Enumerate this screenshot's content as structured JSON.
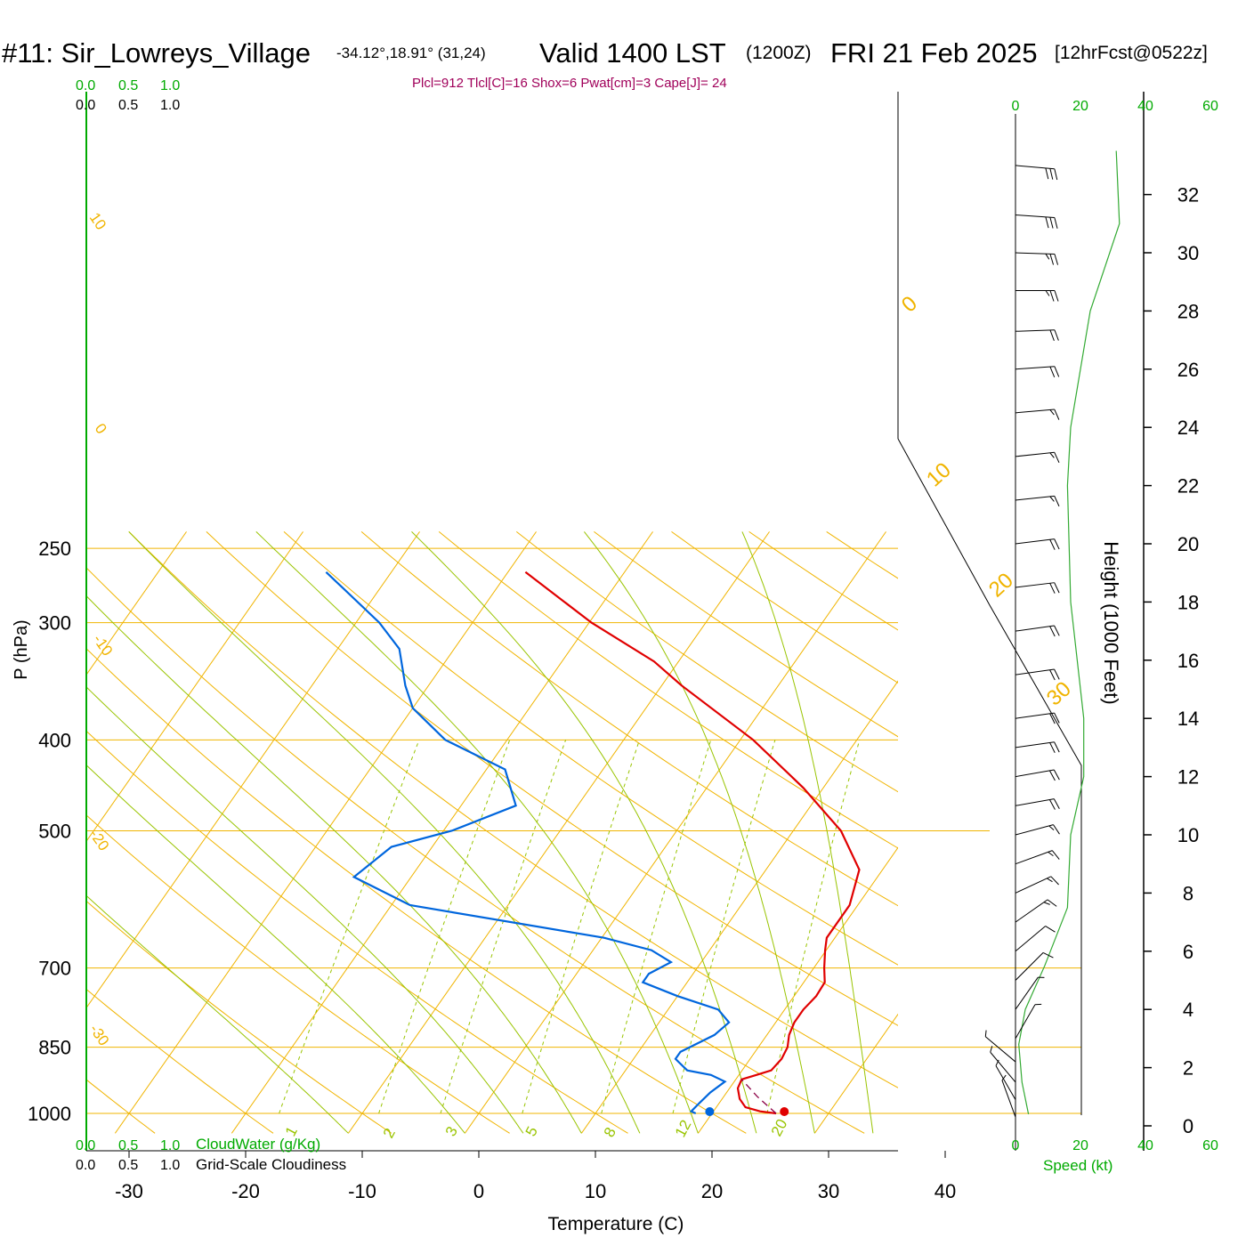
{
  "title": {
    "station": "#11: Sir_Lowreys_Village",
    "coords": "-34.12°,18.91° (31,24)",
    "valid": "Valid 1400 LST",
    "zulu": "(1200Z)",
    "date": "FRI 21 Feb 2025",
    "forecast": "[12hrFcst@0522z]"
  },
  "indices": "Plcl=912 Tlcl[C]=16 Shox=6 Pwat[cm]=3 Cape[J]= 24",
  "colors": {
    "temperature": "#e00000",
    "dewpoint": "#0066dd",
    "parcel": "#8b0045",
    "isobar": "#f0b400",
    "dry_adiabat": "#f0b400",
    "moist_adiabat": "#99c400",
    "mixing_ratio": "#99c400",
    "green_text": "#00aa00",
    "index_text": "#a0005a"
  },
  "chart_data": {
    "type": "line",
    "subtype": "skew-t",
    "xlabel": "Temperature (C)",
    "ylabel": "P (hPa)",
    "right_label": "Height (1000 Feet)",
    "pressure_ticks": [
      250,
      300,
      400,
      500,
      700,
      850,
      1000
    ],
    "temperature_ticks": [
      -30,
      -20,
      -10,
      0,
      10,
      20,
      30,
      40
    ],
    "height_ticks": [
      0,
      2,
      4,
      6,
      8,
      10,
      12,
      14,
      16,
      18,
      20,
      22,
      24,
      26,
      28,
      30,
      32
    ],
    "speed_ticks": [
      0,
      20,
      40,
      60
    ],
    "speed_label": "Speed (kt)",
    "cloud_scale": [
      "0.0",
      "0.5",
      "1.0"
    ],
    "cloud_water_label": "CloudWater (g/Kg)",
    "cloudiness_label": "Grid-Scale Cloudiness",
    "dry_adiabat_labels": [
      "10",
      "0",
      "-10",
      "-20",
      "-30"
    ],
    "moist_adiabat_labels": [
      "0",
      "10",
      "20",
      "30"
    ],
    "mixing_ratio_labels": [
      "1",
      "2",
      "3",
      "5",
      "8",
      "12",
      "20"
    ],
    "temperature_profile": [
      {
        "p": 1000,
        "t": 25.5
      },
      {
        "p": 995,
        "t": 24.0
      },
      {
        "p": 985,
        "t": 22.5
      },
      {
        "p": 965,
        "t": 21.5
      },
      {
        "p": 940,
        "t": 20.7
      },
      {
        "p": 920,
        "t": 20.5
      },
      {
        "p": 910,
        "t": 21.5
      },
      {
        "p": 900,
        "t": 22.5
      },
      {
        "p": 875,
        "t": 22.7
      },
      {
        "p": 850,
        "t": 22.5
      },
      {
        "p": 825,
        "t": 21.9
      },
      {
        "p": 800,
        "t": 21.6
      },
      {
        "p": 775,
        "t": 21.6
      },
      {
        "p": 750,
        "t": 21.9
      },
      {
        "p": 725,
        "t": 21.8
      },
      {
        "p": 700,
        "t": 20.9
      },
      {
        "p": 670,
        "t": 19.9
      },
      {
        "p": 650,
        "t": 19.3
      },
      {
        "p": 600,
        "t": 19.3
      },
      {
        "p": 550,
        "t": 18.0
      },
      {
        "p": 500,
        "t": 14.1
      },
      {
        "p": 450,
        "t": 8.3
      },
      {
        "p": 400,
        "t": 1.1
      },
      {
        "p": 350,
        "t": -8.3
      },
      {
        "p": 330,
        "t": -12.1
      },
      {
        "p": 300,
        "t": -19.8
      },
      {
        "p": 265,
        "t": -28.5
      }
    ],
    "dewpoint_profile": [
      {
        "p": 1000,
        "t": 18.6
      },
      {
        "p": 995,
        "t": 18.1
      },
      {
        "p": 975,
        "t": 18.3
      },
      {
        "p": 950,
        "t": 18.6
      },
      {
        "p": 925,
        "t": 19.2
      },
      {
        "p": 910,
        "t": 17.6
      },
      {
        "p": 900,
        "t": 15.3
      },
      {
        "p": 875,
        "t": 13.6
      },
      {
        "p": 860,
        "t": 13.6
      },
      {
        "p": 825,
        "t": 15.5
      },
      {
        "p": 800,
        "t": 16.0
      },
      {
        "p": 775,
        "t": 14.3
      },
      {
        "p": 750,
        "t": 10.0
      },
      {
        "p": 725,
        "t": 6.2
      },
      {
        "p": 710,
        "t": 6.2
      },
      {
        "p": 690,
        "t": 7.4
      },
      {
        "p": 670,
        "t": 5.0
      },
      {
        "p": 650,
        "t": 0.2
      },
      {
        "p": 600,
        "t": -18.4
      },
      {
        "p": 560,
        "t": -24.9
      },
      {
        "p": 520,
        "t": -23.5
      },
      {
        "p": 500,
        "t": -19.3
      },
      {
        "p": 470,
        "t": -15.3
      },
      {
        "p": 430,
        "t": -18.4
      },
      {
        "p": 400,
        "t": -25.3
      },
      {
        "p": 370,
        "t": -30.0
      },
      {
        "p": 350,
        "t": -32.0
      },
      {
        "p": 320,
        "t": -34.7
      },
      {
        "p": 300,
        "t": -38.0
      },
      {
        "p": 265,
        "t": -45.6
      }
    ],
    "parcel_path": [
      {
        "p": 1000,
        "t": 25.5
      },
      {
        "p": 960,
        "t": 22.9
      },
      {
        "p": 920,
        "t": 20.5
      }
    ],
    "surface_temperature": 26.2,
    "surface_dewpoint": 19.8,
    "wind_speed_profile_kt": [
      {
        "z": 0.4,
        "v": 4
      },
      {
        "z": 1.5,
        "v": 2
      },
      {
        "z": 2.8,
        "v": 1
      },
      {
        "z": 4.0,
        "v": 3
      },
      {
        "z": 5.5,
        "v": 9
      },
      {
        "z": 7.5,
        "v": 16
      },
      {
        "z": 10,
        "v": 17
      },
      {
        "z": 12,
        "v": 21
      },
      {
        "z": 14,
        "v": 21
      },
      {
        "z": 18,
        "v": 17
      },
      {
        "z": 22,
        "v": 16
      },
      {
        "z": 24,
        "v": 17
      },
      {
        "z": 28,
        "v": 23
      },
      {
        "z": 31,
        "v": 32
      },
      {
        "z": 33.5,
        "v": 31
      }
    ],
    "wind_barbs": [
      {
        "z": 0.3,
        "dir": 160,
        "kt": 5
      },
      {
        "z": 0.9,
        "dir": 150,
        "kt": 5
      },
      {
        "z": 1.5,
        "dir": 140,
        "kt": 5
      },
      {
        "z": 2.2,
        "dir": 130,
        "kt": 5
      },
      {
        "z": 3.0,
        "dir": 210,
        "kt": 5
      },
      {
        "z": 4.0,
        "dir": 215,
        "kt": 5
      },
      {
        "z": 5.0,
        "dir": 225,
        "kt": 10
      },
      {
        "z": 6.0,
        "dir": 230,
        "kt": 10
      },
      {
        "z": 7.0,
        "dir": 235,
        "kt": 15
      },
      {
        "z": 8.0,
        "dir": 245,
        "kt": 15
      },
      {
        "z": 9.0,
        "dir": 250,
        "kt": 15
      },
      {
        "z": 10.0,
        "dir": 255,
        "kt": 15
      },
      {
        "z": 11.0,
        "dir": 260,
        "kt": 20
      },
      {
        "z": 12.0,
        "dir": 260,
        "kt": 20
      },
      {
        "z": 13.0,
        "dir": 262,
        "kt": 20
      },
      {
        "z": 14.0,
        "dir": 262,
        "kt": 20
      },
      {
        "z": 15.5,
        "dir": 262,
        "kt": 20
      },
      {
        "z": 17.0,
        "dir": 262,
        "kt": 20
      },
      {
        "z": 18.5,
        "dir": 263,
        "kt": 20
      },
      {
        "z": 20.0,
        "dir": 263,
        "kt": 20
      },
      {
        "z": 21.5,
        "dir": 264,
        "kt": 15
      },
      {
        "z": 23.0,
        "dir": 264,
        "kt": 15
      },
      {
        "z": 24.5,
        "dir": 265,
        "kt": 15
      },
      {
        "z": 26.0,
        "dir": 266,
        "kt": 20
      },
      {
        "z": 27.3,
        "dir": 268,
        "kt": 20
      },
      {
        "z": 28.7,
        "dir": 270,
        "kt": 25
      },
      {
        "z": 30.0,
        "dir": 272,
        "kt": 25
      },
      {
        "z": 31.3,
        "dir": 274,
        "kt": 30
      },
      {
        "z": 33.0,
        "dir": 275,
        "kt": 30
      }
    ]
  }
}
